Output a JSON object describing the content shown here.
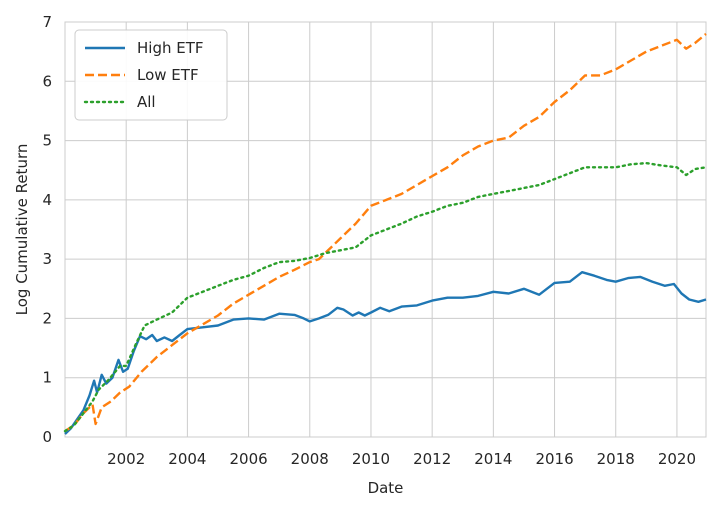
{
  "chart_data": {
    "type": "line",
    "title": "",
    "xlabel": "Date",
    "ylabel": "Log Cumulative Return",
    "xlim": [
      2000.0,
      2020.95
    ],
    "ylim": [
      0,
      7
    ],
    "x_ticks": [
      2002,
      2004,
      2006,
      2008,
      2010,
      2012,
      2014,
      2016,
      2018,
      2020
    ],
    "x_tick_labels": [
      "2002",
      "2004",
      "2006",
      "2008",
      "2010",
      "2012",
      "2014",
      "2016",
      "2018",
      "2020"
    ],
    "y_ticks": [
      0,
      1,
      2,
      3,
      4,
      5,
      6,
      7
    ],
    "y_tick_labels": [
      "0",
      "1",
      "2",
      "3",
      "4",
      "5",
      "6",
      "7"
    ],
    "grid": true,
    "legend_position": "top-left",
    "series": [
      {
        "name": "High ETF",
        "color": "#1f77b4",
        "style": "solid",
        "points": [
          [
            2000.0,
            0.05
          ],
          [
            2000.2,
            0.15
          ],
          [
            2000.4,
            0.3
          ],
          [
            2000.6,
            0.45
          ],
          [
            2000.8,
            0.7
          ],
          [
            2000.95,
            0.95
          ],
          [
            2001.05,
            0.75
          ],
          [
            2001.2,
            1.05
          ],
          [
            2001.35,
            0.9
          ],
          [
            2001.55,
            1.0
          ],
          [
            2001.75,
            1.3
          ],
          [
            2001.9,
            1.1
          ],
          [
            2002.05,
            1.15
          ],
          [
            2002.25,
            1.45
          ],
          [
            2002.45,
            1.7
          ],
          [
            2002.65,
            1.65
          ],
          [
            2002.85,
            1.72
          ],
          [
            2003.0,
            1.62
          ],
          [
            2003.25,
            1.68
          ],
          [
            2003.5,
            1.62
          ],
          [
            2003.75,
            1.72
          ],
          [
            2004.0,
            1.82
          ],
          [
            2004.5,
            1.85
          ],
          [
            2005.0,
            1.88
          ],
          [
            2005.5,
            1.98
          ],
          [
            2006.0,
            2.0
          ],
          [
            2006.5,
            1.98
          ],
          [
            2007.0,
            2.08
          ],
          [
            2007.5,
            2.06
          ],
          [
            2007.8,
            2.0
          ],
          [
            2008.0,
            1.95
          ],
          [
            2008.3,
            2.0
          ],
          [
            2008.6,
            2.06
          ],
          [
            2008.9,
            2.18
          ],
          [
            2009.1,
            2.15
          ],
          [
            2009.4,
            2.05
          ],
          [
            2009.6,
            2.1
          ],
          [
            2009.8,
            2.05
          ],
          [
            2010.0,
            2.1
          ],
          [
            2010.3,
            2.18
          ],
          [
            2010.6,
            2.12
          ],
          [
            2011.0,
            2.2
          ],
          [
            2011.5,
            2.22
          ],
          [
            2012.0,
            2.3
          ],
          [
            2012.5,
            2.35
          ],
          [
            2013.0,
            2.35
          ],
          [
            2013.5,
            2.38
          ],
          [
            2014.0,
            2.45
          ],
          [
            2014.5,
            2.42
          ],
          [
            2015.0,
            2.5
          ],
          [
            2015.5,
            2.4
          ],
          [
            2016.0,
            2.6
          ],
          [
            2016.5,
            2.62
          ],
          [
            2016.9,
            2.78
          ],
          [
            2017.3,
            2.72
          ],
          [
            2017.7,
            2.65
          ],
          [
            2018.0,
            2.62
          ],
          [
            2018.4,
            2.68
          ],
          [
            2018.8,
            2.7
          ],
          [
            2019.2,
            2.62
          ],
          [
            2019.6,
            2.55
          ],
          [
            2019.9,
            2.58
          ],
          [
            2020.15,
            2.42
          ],
          [
            2020.4,
            2.32
          ],
          [
            2020.7,
            2.28
          ],
          [
            2020.95,
            2.32
          ]
        ]
      },
      {
        "name": "Low ETF",
        "color": "#ff7f0e",
        "style": "dashed",
        "points": [
          [
            2000.0,
            0.1
          ],
          [
            2000.3,
            0.2
          ],
          [
            2000.6,
            0.4
          ],
          [
            2000.9,
            0.55
          ],
          [
            2001.0,
            0.22
          ],
          [
            2001.2,
            0.5
          ],
          [
            2001.5,
            0.6
          ],
          [
            2001.8,
            0.75
          ],
          [
            2002.1,
            0.85
          ],
          [
            2002.5,
            1.1
          ],
          [
            2003.0,
            1.35
          ],
          [
            2003.5,
            1.55
          ],
          [
            2004.0,
            1.75
          ],
          [
            2004.5,
            1.9
          ],
          [
            2005.0,
            2.05
          ],
          [
            2005.5,
            2.25
          ],
          [
            2006.0,
            2.4
          ],
          [
            2006.5,
            2.55
          ],
          [
            2007.0,
            2.7
          ],
          [
            2007.5,
            2.82
          ],
          [
            2008.0,
            2.95
          ],
          [
            2008.3,
            3.0
          ],
          [
            2008.6,
            3.15
          ],
          [
            2009.0,
            3.35
          ],
          [
            2009.5,
            3.6
          ],
          [
            2010.0,
            3.9
          ],
          [
            2010.5,
            4.0
          ],
          [
            2011.0,
            4.1
          ],
          [
            2011.5,
            4.25
          ],
          [
            2012.0,
            4.4
          ],
          [
            2012.5,
            4.55
          ],
          [
            2013.0,
            4.75
          ],
          [
            2013.5,
            4.9
          ],
          [
            2014.0,
            5.0
          ],
          [
            2014.5,
            5.05
          ],
          [
            2015.0,
            5.25
          ],
          [
            2015.5,
            5.4
          ],
          [
            2016.0,
            5.65
          ],
          [
            2016.5,
            5.85
          ],
          [
            2017.0,
            6.1
          ],
          [
            2017.5,
            6.1
          ],
          [
            2018.0,
            6.2
          ],
          [
            2018.5,
            6.35
          ],
          [
            2019.0,
            6.5
          ],
          [
            2019.5,
            6.6
          ],
          [
            2020.0,
            6.7
          ],
          [
            2020.3,
            6.55
          ],
          [
            2020.6,
            6.65
          ],
          [
            2020.95,
            6.8
          ]
        ]
      },
      {
        "name": "All",
        "color": "#2ca02c",
        "style": "dotted",
        "points": [
          [
            2000.0,
            0.1
          ],
          [
            2000.3,
            0.2
          ],
          [
            2000.6,
            0.4
          ],
          [
            2000.9,
            0.6
          ],
          [
            2001.1,
            0.8
          ],
          [
            2001.4,
            0.95
          ],
          [
            2001.8,
            1.2
          ],
          [
            2002.0,
            1.2
          ],
          [
            2002.3,
            1.55
          ],
          [
            2002.6,
            1.88
          ],
          [
            2003.0,
            1.98
          ],
          [
            2003.5,
            2.1
          ],
          [
            2004.0,
            2.35
          ],
          [
            2004.5,
            2.45
          ],
          [
            2005.0,
            2.55
          ],
          [
            2005.5,
            2.65
          ],
          [
            2006.0,
            2.72
          ],
          [
            2006.5,
            2.85
          ],
          [
            2007.0,
            2.95
          ],
          [
            2007.5,
            2.97
          ],
          [
            2008.0,
            3.02
          ],
          [
            2008.5,
            3.1
          ],
          [
            2009.0,
            3.15
          ],
          [
            2009.5,
            3.2
          ],
          [
            2010.0,
            3.4
          ],
          [
            2010.5,
            3.5
          ],
          [
            2011.0,
            3.6
          ],
          [
            2011.5,
            3.72
          ],
          [
            2012.0,
            3.8
          ],
          [
            2012.5,
            3.9
          ],
          [
            2013.0,
            3.95
          ],
          [
            2013.5,
            4.05
          ],
          [
            2014.0,
            4.1
          ],
          [
            2014.5,
            4.15
          ],
          [
            2015.0,
            4.2
          ],
          [
            2015.5,
            4.25
          ],
          [
            2016.0,
            4.35
          ],
          [
            2016.5,
            4.45
          ],
          [
            2017.0,
            4.55
          ],
          [
            2017.5,
            4.55
          ],
          [
            2018.0,
            4.55
          ],
          [
            2018.5,
            4.6
          ],
          [
            2019.0,
            4.62
          ],
          [
            2019.5,
            4.58
          ],
          [
            2020.0,
            4.55
          ],
          [
            2020.3,
            4.42
          ],
          [
            2020.6,
            4.52
          ],
          [
            2020.95,
            4.55
          ]
        ]
      }
    ]
  }
}
